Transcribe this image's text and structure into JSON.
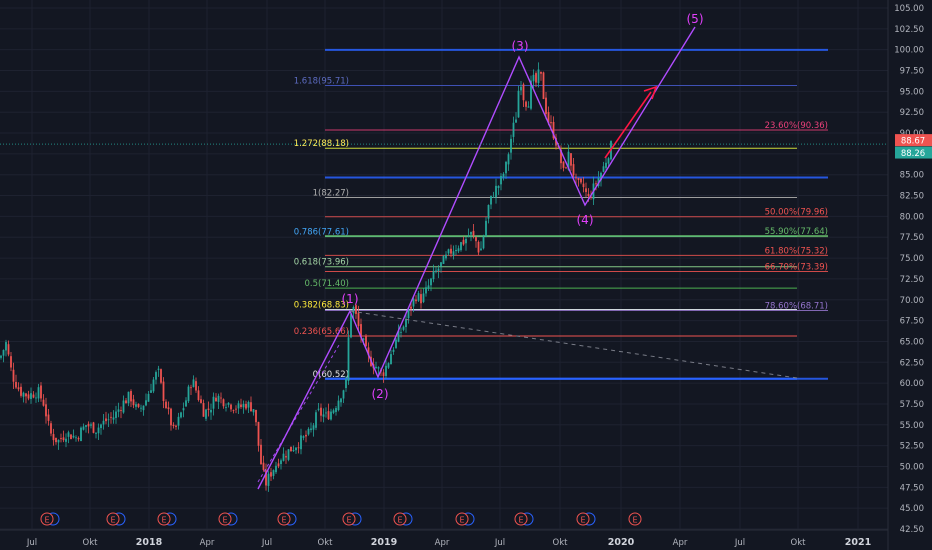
{
  "chart_data": {
    "type": "candlestick",
    "y_axis": {
      "position": "right",
      "range": [
        42.5,
        105.0
      ],
      "ticks": [
        "105.00",
        "102.50",
        "100.00",
        "97.50",
        "95.00",
        "92.50",
        "90.00",
        "87.50",
        "85.00",
        "82.50",
        "80.00",
        "77.50",
        "75.00",
        "72.50",
        "70.00",
        "67.50",
        "65.00",
        "62.50",
        "60.00",
        "57.50",
        "55.00",
        "52.50",
        "50.00",
        "47.50",
        "45.00",
        "42.50"
      ]
    },
    "x_axis": {
      "ticks": [
        {
          "label": "Jul",
          "bold": false
        },
        {
          "label": "Okt",
          "bold": false
        },
        {
          "label": "2018",
          "bold": true
        },
        {
          "label": "Apr",
          "bold": false
        },
        {
          "label": "Jul",
          "bold": false
        },
        {
          "label": "Okt",
          "bold": false
        },
        {
          "label": "2019",
          "bold": true
        },
        {
          "label": "Apr",
          "bold": false
        },
        {
          "label": "Jul",
          "bold": false
        },
        {
          "label": "Okt",
          "bold": false
        },
        {
          "label": "2020",
          "bold": true
        },
        {
          "label": "Apr",
          "bold": false
        },
        {
          "label": "Jul",
          "bold": false
        },
        {
          "label": "Okt",
          "bold": false
        },
        {
          "label": "2021",
          "bold": true
        }
      ]
    },
    "price_labels": {
      "last": {
        "value": "88.67",
        "color": "#ef5350"
      },
      "prev": {
        "value": "88.26",
        "color": "#26a69a"
      }
    },
    "price_path": [
      [
        0,
        63.0
      ],
      [
        6,
        64.8
      ],
      [
        12,
        61.0
      ],
      [
        20,
        59.0
      ],
      [
        28,
        58.5
      ],
      [
        38,
        59.0
      ],
      [
        44,
        57.5
      ],
      [
        50,
        54.0
      ],
      [
        58,
        53.0
      ],
      [
        66,
        54.0
      ],
      [
        76,
        53.5
      ],
      [
        86,
        55.0
      ],
      [
        96,
        54.5
      ],
      [
        106,
        55.5
      ],
      [
        114,
        56.0
      ],
      [
        122,
        57.5
      ],
      [
        130,
        58.5
      ],
      [
        138,
        56.5
      ],
      [
        146,
        58.0
      ],
      [
        152,
        60.0
      ],
      [
        158,
        61.5
      ],
      [
        162,
        59.0
      ],
      [
        168,
        56.5
      ],
      [
        174,
        54.0
      ],
      [
        180,
        56.0
      ],
      [
        186,
        58.0
      ],
      [
        192,
        60.5
      ],
      [
        198,
        58.5
      ],
      [
        204,
        56.5
      ],
      [
        210,
        57.0
      ],
      [
        216,
        58.5
      ],
      [
        222,
        58.0
      ],
      [
        230,
        57.5
      ],
      [
        238,
        57.0
      ],
      [
        246,
        57.5
      ],
      [
        254,
        57.0
      ],
      [
        258,
        53.0
      ],
      [
        262,
        49.5
      ],
      [
        266,
        48.0
      ],
      [
        272,
        49.5
      ],
      [
        280,
        51.0
      ],
      [
        290,
        52.0
      ],
      [
        300,
        53.0
      ],
      [
        310,
        54.0
      ],
      [
        318,
        56.5
      ],
      [
        326,
        56.0
      ],
      [
        334,
        57.0
      ],
      [
        340,
        58.5
      ],
      [
        346,
        60.0
      ],
      [
        350,
        68.5
      ],
      [
        354,
        69.0
      ],
      [
        360,
        66.0
      ],
      [
        368,
        63.0
      ],
      [
        376,
        62.0
      ],
      [
        382,
        61.0
      ],
      [
        388,
        62.5
      ],
      [
        392,
        64.0
      ],
      [
        398,
        65.5
      ],
      [
        404,
        67.0
      ],
      [
        410,
        69.0
      ],
      [
        416,
        70.5
      ],
      [
        422,
        70.0
      ],
      [
        428,
        71.5
      ],
      [
        434,
        73.0
      ],
      [
        440,
        74.0
      ],
      [
        446,
        75.0
      ],
      [
        452,
        76.0
      ],
      [
        458,
        76.5
      ],
      [
        464,
        77.0
      ],
      [
        470,
        78.0
      ],
      [
        476,
        77.0
      ],
      [
        480,
        75.5
      ],
      [
        484,
        78.0
      ],
      [
        488,
        81.0
      ],
      [
        494,
        83.0
      ],
      [
        500,
        84.0
      ],
      [
        506,
        86.0
      ],
      [
        512,
        90.0
      ],
      [
        516,
        92.0
      ],
      [
        520,
        97.0
      ],
      [
        524,
        94.0
      ],
      [
        528,
        93.5
      ],
      [
        532,
        96.5
      ],
      [
        536,
        96.0
      ],
      [
        540,
        97.5
      ],
      [
        544,
        94.0
      ],
      [
        548,
        91.5
      ],
      [
        552,
        90.5
      ],
      [
        556,
        89.0
      ],
      [
        560,
        87.0
      ],
      [
        564,
        85.0
      ],
      [
        568,
        87.5
      ],
      [
        572,
        86.0
      ],
      [
        576,
        84.0
      ],
      [
        580,
        83.5
      ],
      [
        584,
        83.5
      ],
      [
        588,
        82.0
      ],
      [
        592,
        83.0
      ],
      [
        596,
        84.0
      ],
      [
        600,
        85.0
      ],
      [
        604,
        86.0
      ],
      [
        608,
        87.5
      ],
      [
        612,
        88.67
      ]
    ],
    "fib_levels": [
      {
        "level": "0",
        "value": 60.52,
        "label": "0(60.52)",
        "color": "#e5e5e5",
        "line": "#2962ff",
        "label_at": "left",
        "width": 2
      },
      {
        "level": "0.236",
        "value": 65.66,
        "label": "0.236(65.66)",
        "color": "#ef5350",
        "line": "#ef5350",
        "label_at": "left",
        "width": 1
      },
      {
        "level": "0.382",
        "value": 68.83,
        "label": "0.382(68.83)",
        "color": "#ffeb3b",
        "line": "#cfd8dc",
        "label_at": "left",
        "width": 1
      },
      {
        "level": "0.5",
        "value": 71.4,
        "label": "0.5(71.40)",
        "color": "#66bb6a",
        "line": "#4caf50",
        "label_at": "left",
        "width": 1
      },
      {
        "level": "0.618",
        "value": 73.96,
        "label": "0.618(73.96)",
        "color": "#a5d6a7",
        "line": "#81c784",
        "label_at": "left",
        "width": 1
      },
      {
        "level": "0.786",
        "value": 77.61,
        "label": "0.786(77.61)",
        "color": "#42a5f5",
        "line": "#26c6da",
        "label_at": "left",
        "width": 1
      },
      {
        "level": "1",
        "value": 82.27,
        "label": "1(82.27)",
        "color": "#b0b0b0",
        "line": "#9e9e9e",
        "label_at": "left",
        "width": 1
      },
      {
        "level": "1.272",
        "value": 88.18,
        "label": "1.272(88.18)",
        "color": "#ffee58",
        "line": "#cddc39",
        "label_at": "left",
        "width": 1
      },
      {
        "level": "1.618",
        "value": 95.71,
        "label": "1.618(95.71)",
        "color": "#5c6bc0",
        "line": "#3f51b5",
        "label_at": "left",
        "width": 1
      }
    ],
    "retrace_levels": [
      {
        "value": 99.98,
        "label": "",
        "color": "#2962ff",
        "width": 2
      },
      {
        "value": 90.36,
        "label": "23.60%(90.36)",
        "color": "#ec407a",
        "width": 1
      },
      {
        "value": 84.67,
        "label": "",
        "color": "#2962ff",
        "width": 2
      },
      {
        "value": 79.96,
        "label": "50.00%(79.96)",
        "color": "#ef5350",
        "width": 1
      },
      {
        "value": 77.64,
        "label": "55.90%(77.64)",
        "color": "#66bb6a",
        "width": 2
      },
      {
        "value": 75.32,
        "label": "61.80%(75.32)",
        "color": "#ef5350",
        "width": 1
      },
      {
        "value": 73.39,
        "label": "66.70%(73.39)",
        "color": "#ef5350",
        "width": 1
      },
      {
        "value": 68.71,
        "label": "78.60%(68.71)",
        "color": "#9575cd",
        "width": 1
      },
      {
        "value": 60.52,
        "label": "",
        "color": "#2962ff",
        "width": 2
      }
    ],
    "wave_labels": [
      {
        "text": "(1)",
        "color": "#e040fb"
      },
      {
        "text": "(2)",
        "color": "#e040fb"
      },
      {
        "text": "(3)",
        "color": "#e040fb"
      },
      {
        "text": "(4)",
        "color": "#e040fb"
      },
      {
        "text": "(5)",
        "color": "#e040fb"
      }
    ],
    "earnings_markers": [
      "E",
      "E",
      "E",
      "E",
      "E",
      "E",
      "E",
      "E",
      "E",
      "E",
      "E"
    ],
    "colors": {
      "background": "#131722",
      "grid": "#1e2230",
      "up": "#26a69a",
      "down": "#ef5350",
      "wave": "#b04cff",
      "arrow": "#ff1744"
    }
  }
}
